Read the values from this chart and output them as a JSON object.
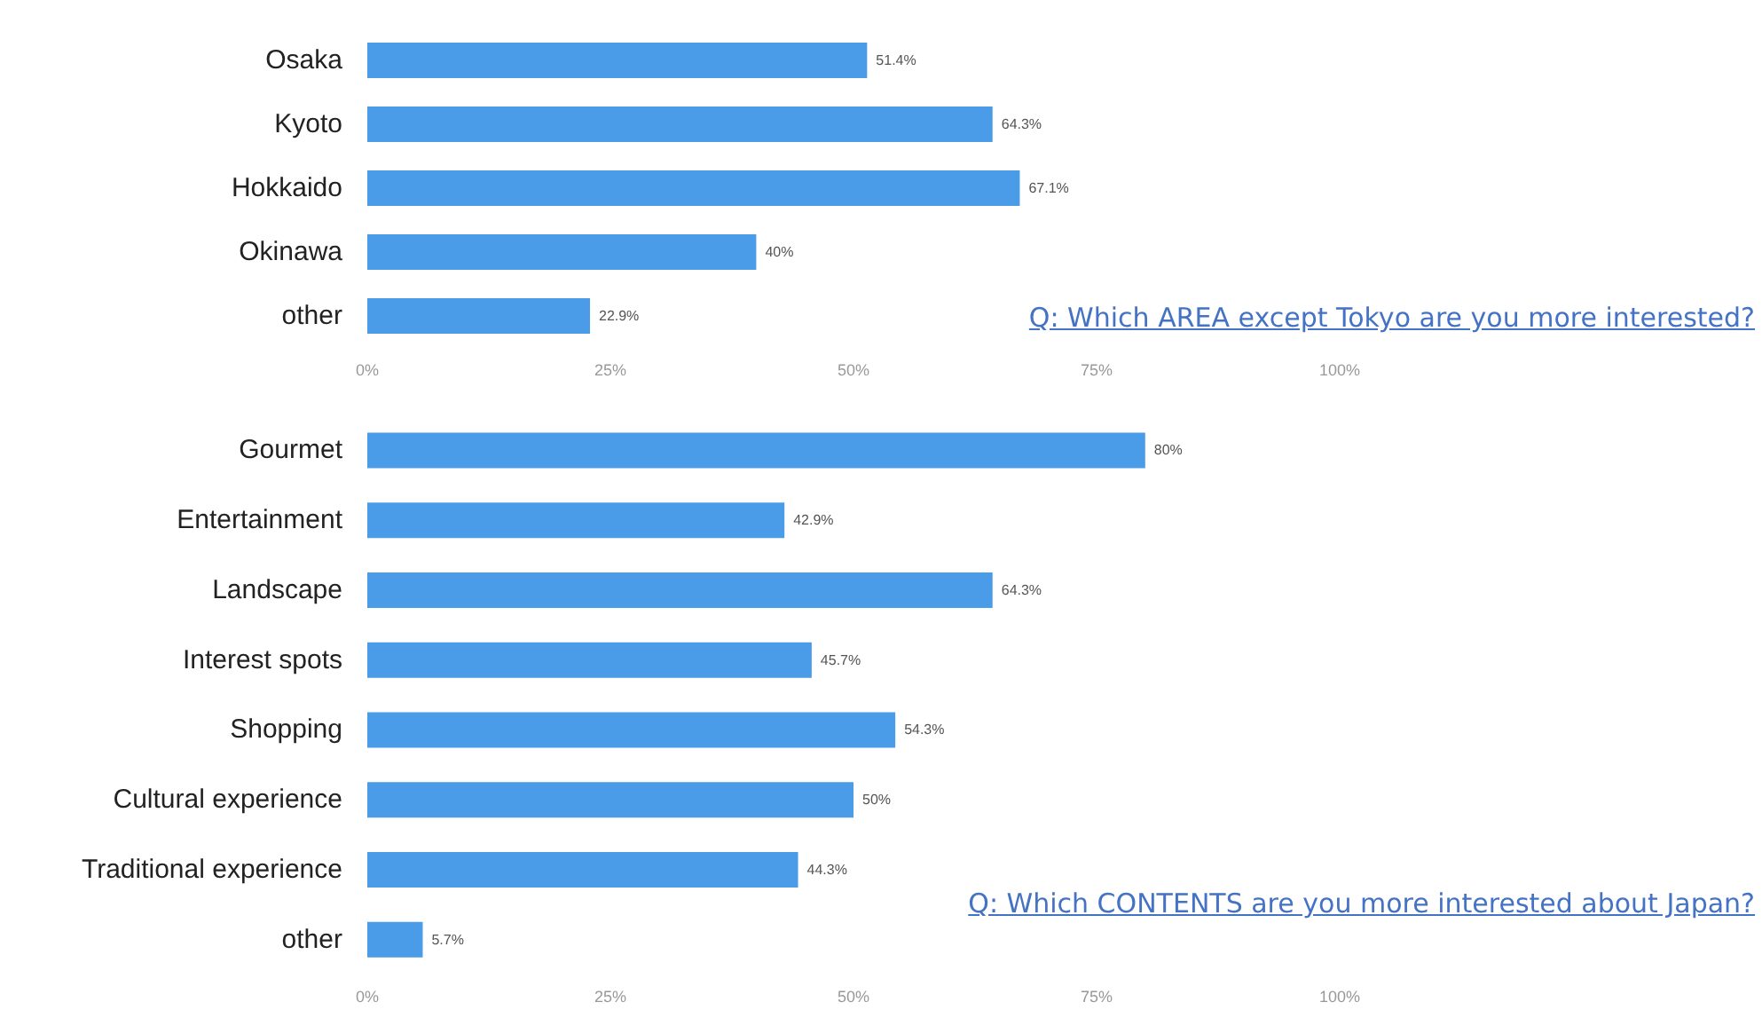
{
  "chart_data": [
    {
      "type": "bar",
      "orientation": "horizontal",
      "categories": [
        "Osaka",
        "Kyoto",
        "Hokkaido",
        "Okinawa",
        "other"
      ],
      "values": [
        51.4,
        64.3,
        67.1,
        40,
        22.9
      ],
      "color": "#4a9be8",
      "value_labels": [
        "51.4%",
        "64.3%",
        "67.1%",
        "40%",
        "22.9%"
      ],
      "xlim": [
        0,
        100
      ],
      "xticks": [
        {
          "value": 0,
          "label": "0%"
        },
        {
          "value": 25,
          "label": "25%"
        },
        {
          "value": 50,
          "label": "50%"
        },
        {
          "value": 75,
          "label": "75%"
        },
        {
          "value": 100,
          "label": "100%"
        }
      ],
      "grid": false,
      "annotations": [
        "Q: Which AREA except Tokyo are you more interested?"
      ]
    },
    {
      "type": "bar",
      "orientation": "horizontal",
      "categories": [
        "Gourmet",
        "Entertainment",
        "Landscape",
        "Interest spots",
        "Shopping",
        "Cultural experience",
        "Traditional experience",
        "other"
      ],
      "values": [
        80,
        42.9,
        64.3,
        45.7,
        54.3,
        50,
        44.3,
        5.7
      ],
      "color": "#4a9be8",
      "value_labels": [
        "80%",
        "42.9%",
        "64.3%",
        "45.7%",
        "54.3%",
        "50%",
        "44.3%",
        "5.7%"
      ],
      "xlim": [
        0,
        100
      ],
      "xticks": [
        {
          "value": 0,
          "label": "0%"
        },
        {
          "value": 25,
          "label": "25%"
        },
        {
          "value": 50,
          "label": "50%"
        },
        {
          "value": 75,
          "label": "75%"
        },
        {
          "value": 100,
          "label": "100%"
        }
      ],
      "grid": false,
      "annotations": [
        "Q: Which CONTENTS are you more interested about Japan?"
      ]
    }
  ]
}
